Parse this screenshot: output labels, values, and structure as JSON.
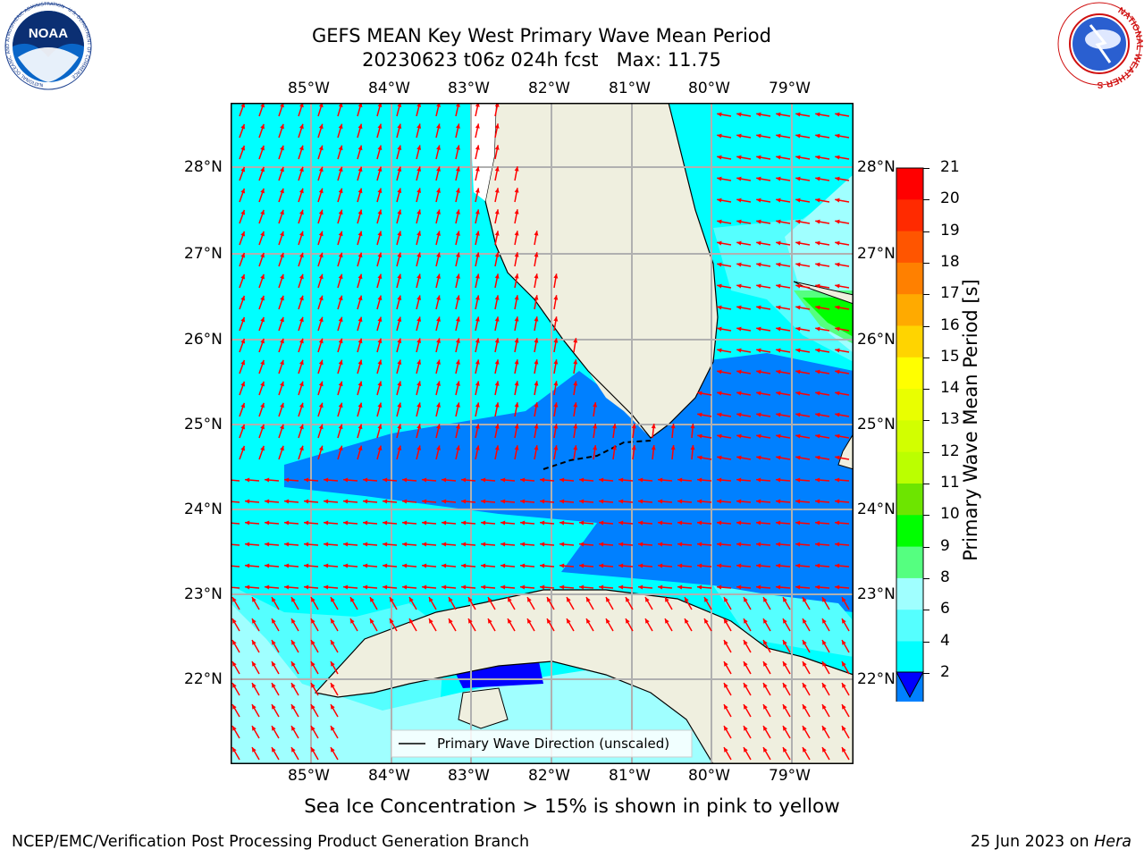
{
  "title": {
    "line1": "GEFS MEAN Key West Primary Wave Mean Period",
    "line2": "20230623 t06z 024h fcst   Max: 11.75"
  },
  "logos": {
    "left_text": "NOAA",
    "left_ring_text": "NATIONAL OCEANIC AND ATMOSPHERIC ADMINISTRATION · U.S. DEPARTMENT OF COMMERCE",
    "right_ring_text": "NATIONAL WEATHER SERVICE"
  },
  "map": {
    "lon_labels": [
      "85°W",
      "84°W",
      "83°W",
      "82°W",
      "81°W",
      "80°W",
      "79°W"
    ],
    "lat_labels": [
      "28°N",
      "27°N",
      "26°N",
      "25°N",
      "24°N",
      "23°N",
      "22°N"
    ],
    "legend_label": "Primary Wave Direction (unscaled)",
    "colors": {
      "ocean_4_6": "#00ffff",
      "ocean_6_8": "#55ffff",
      "ocean_8_9": "#a0ffff",
      "ocean_2_4": "#0080ff",
      "ocean_lt2": "#0000ff",
      "land": "#efefdf",
      "arrow": "#ff0000",
      "grid": "#b0b0b0"
    }
  },
  "colorbar": {
    "label": "Primary Wave Mean Period [s]",
    "ticks": [
      "21",
      "20",
      "19",
      "18",
      "17",
      "16",
      "15",
      "14",
      "13",
      "12",
      "11",
      "10",
      "9",
      "8",
      "6",
      "4",
      "2"
    ],
    "colors": [
      "#ff0000",
      "#ff2a00",
      "#ff5500",
      "#ff8000",
      "#ffaa00",
      "#ffd400",
      "#ffff00",
      "#e9ff00",
      "#d2ff00",
      "#bbff00",
      "#6de500",
      "#00ff00",
      "#55ff80",
      "#a0ffff",
      "#55ffff",
      "#00ffff",
      "#0080ff"
    ],
    "extend_color": "#0000ff"
  },
  "note": "Sea Ice Concentration > 15% is shown in pink to yellow",
  "footer": {
    "left": "NCEP/EMC/Verification Post Processing Product Generation Branch",
    "right_date": "25 Jun 2023 on",
    "right_host": "Hera"
  }
}
